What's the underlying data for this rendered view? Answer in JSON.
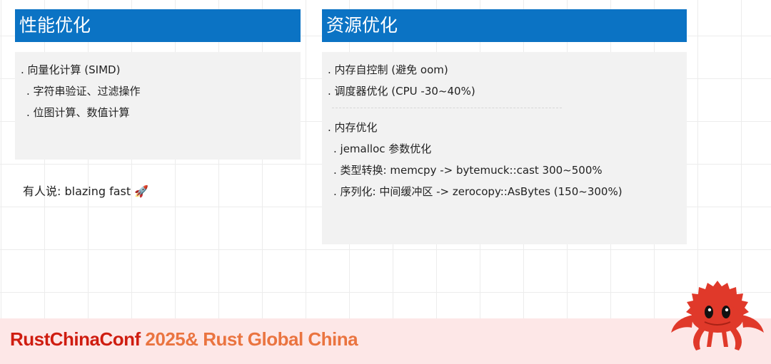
{
  "left": {
    "title": "性能优化",
    "items": [
      {
        "level": 1,
        "text": ". 向量化计算 (SIMD)"
      },
      {
        "level": 2,
        "text": ". 字符串验证、过滤操作"
      },
      {
        "level": 2,
        "text": ". 位图计算、数值计算"
      }
    ]
  },
  "right": {
    "title": "资源优化",
    "items_top": [
      ". 内存自控制 (避免 oom)",
      ". 调度器优化 (CPU -30~40%)"
    ],
    "items_bottom": [
      {
        "level": 1,
        "text": ". 内存优化"
      },
      {
        "level": 2,
        "text": ". jemalloc 参数优化"
      },
      {
        "level": 2,
        "text": ". 类型转换: memcpy -> bytemuck::cast 300~500%"
      },
      {
        "level": 2,
        "text": ". 序列化: 中间缓冲区 -> zerocopy::AsBytes (150~300%)"
      }
    ]
  },
  "note": "有人说: blazing fast 🚀",
  "footer": {
    "part1": "RustChinaConf",
    "part2": " 2025& Rust Global China"
  },
  "colors": {
    "header": "#0b73c4",
    "footer_bg": "#fde7e7",
    "footer_red": "#cf1d10",
    "footer_orange": "#ea7440",
    "crab": "#e0392a"
  }
}
